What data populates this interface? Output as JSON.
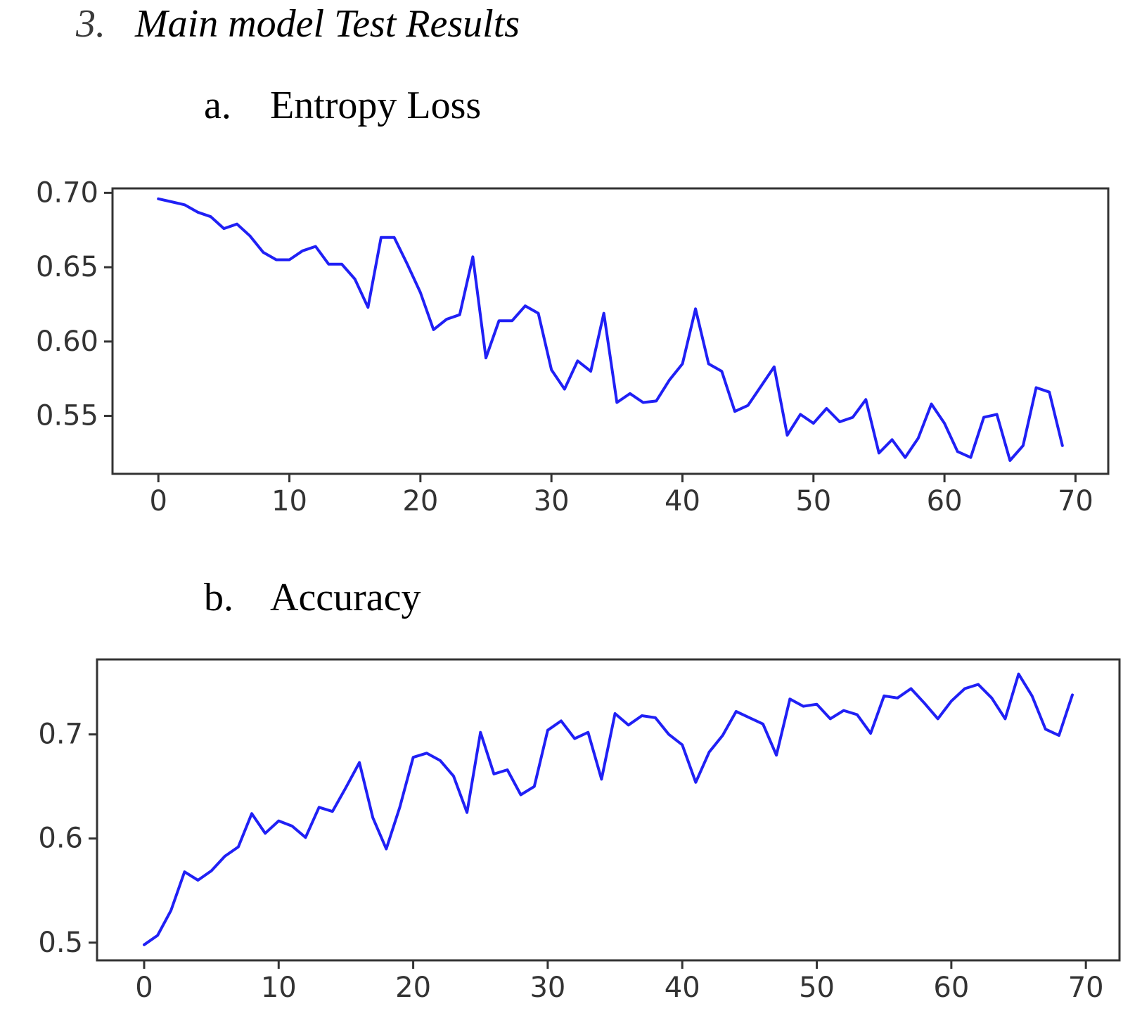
{
  "headings": {
    "section_number": "3.",
    "section_title": "Main model Test Results",
    "a_label": "a.",
    "a_title": "Entropy Loss",
    "b_label": "b.",
    "b_title": "Accuracy"
  },
  "colors": {
    "line": "#2020f5",
    "axes": "#333333"
  },
  "chart_data": [
    {
      "type": "line",
      "title": "Entropy Loss",
      "xlim": [
        -3.5,
        72.5
      ],
      "ylim": [
        0.511,
        0.703
      ],
      "xticks": [
        0,
        10,
        20,
        30,
        40,
        50,
        60,
        70
      ],
      "yticks": [
        0.55,
        0.6,
        0.65,
        0.7
      ],
      "ytick_labels": [
        "0.55",
        "0.60",
        "0.65",
        "0.70"
      ],
      "grid": false,
      "series": [
        {
          "x": [
            0,
            1,
            2,
            3,
            4,
            5,
            6,
            7,
            8,
            9,
            10,
            11,
            12,
            13,
            14,
            15,
            16,
            17,
            18,
            19,
            20,
            21,
            22,
            23,
            24,
            25,
            26,
            27,
            28,
            29,
            30,
            31,
            32,
            33,
            34,
            35,
            36,
            37,
            38,
            39,
            40,
            41,
            42,
            43,
            44,
            45,
            46,
            47,
            48,
            49,
            50,
            51,
            52,
            53,
            54,
            55,
            56,
            57,
            58,
            59,
            60,
            61,
            62,
            63,
            64,
            65,
            66,
            67,
            68,
            69
          ],
          "values": [
            0.696,
            0.694,
            0.692,
            0.687,
            0.684,
            0.676,
            0.679,
            0.671,
            0.66,
            0.655,
            0.655,
            0.661,
            0.664,
            0.652,
            0.652,
            0.642,
            0.623,
            0.67,
            0.67,
            0.652,
            0.633,
            0.608,
            0.615,
            0.618,
            0.657,
            0.589,
            0.614,
            0.614,
            0.624,
            0.619,
            0.581,
            0.568,
            0.587,
            0.58,
            0.619,
            0.559,
            0.565,
            0.559,
            0.56,
            0.574,
            0.585,
            0.622,
            0.585,
            0.58,
            0.553,
            0.557,
            0.57,
            0.583,
            0.537,
            0.551,
            0.545,
            0.555,
            0.546,
            0.549,
            0.561,
            0.525,
            0.534,
            0.522,
            0.535,
            0.558,
            0.545,
            0.526,
            0.522,
            0.549,
            0.551,
            0.52,
            0.53,
            0.569,
            0.566,
            0.53
          ]
        }
      ]
    },
    {
      "type": "line",
      "title": "Accuracy",
      "xlim": [
        -3.5,
        72.5
      ],
      "ylim": [
        0.483,
        0.772
      ],
      "xticks": [
        0,
        10,
        20,
        30,
        40,
        50,
        60,
        70
      ],
      "yticks": [
        0.5,
        0.6,
        0.7
      ],
      "ytick_labels": [
        "0.5",
        "0.6",
        "0.7"
      ],
      "grid": false,
      "series": [
        {
          "x": [
            0,
            1,
            2,
            3,
            4,
            5,
            6,
            7,
            8,
            9,
            10,
            11,
            12,
            13,
            14,
            15,
            16,
            17,
            18,
            19,
            20,
            21,
            22,
            23,
            24,
            25,
            26,
            27,
            28,
            29,
            30,
            31,
            32,
            33,
            34,
            35,
            36,
            37,
            38,
            39,
            40,
            41,
            42,
            43,
            44,
            45,
            46,
            47,
            48,
            49,
            50,
            51,
            52,
            53,
            54,
            55,
            56,
            57,
            58,
            59,
            60,
            61,
            62,
            63,
            64,
            65,
            66,
            67,
            68,
            69
          ],
          "values": [
            0.498,
            0.507,
            0.531,
            0.568,
            0.56,
            0.569,
            0.583,
            0.592,
            0.624,
            0.605,
            0.617,
            0.612,
            0.601,
            0.63,
            0.626,
            0.649,
            0.673,
            0.62,
            0.59,
            0.63,
            0.678,
            0.682,
            0.675,
            0.66,
            0.625,
            0.702,
            0.662,
            0.666,
            0.642,
            0.65,
            0.704,
            0.713,
            0.696,
            0.702,
            0.657,
            0.72,
            0.709,
            0.718,
            0.716,
            0.7,
            0.69,
            0.654,
            0.683,
            0.699,
            0.722,
            0.716,
            0.71,
            0.68,
            0.734,
            0.727,
            0.729,
            0.715,
            0.723,
            0.719,
            0.701,
            0.737,
            0.735,
            0.744,
            0.73,
            0.715,
            0.732,
            0.744,
            0.748,
            0.735,
            0.715,
            0.758,
            0.737,
            0.705,
            0.699,
            0.738
          ]
        }
      ]
    }
  ]
}
